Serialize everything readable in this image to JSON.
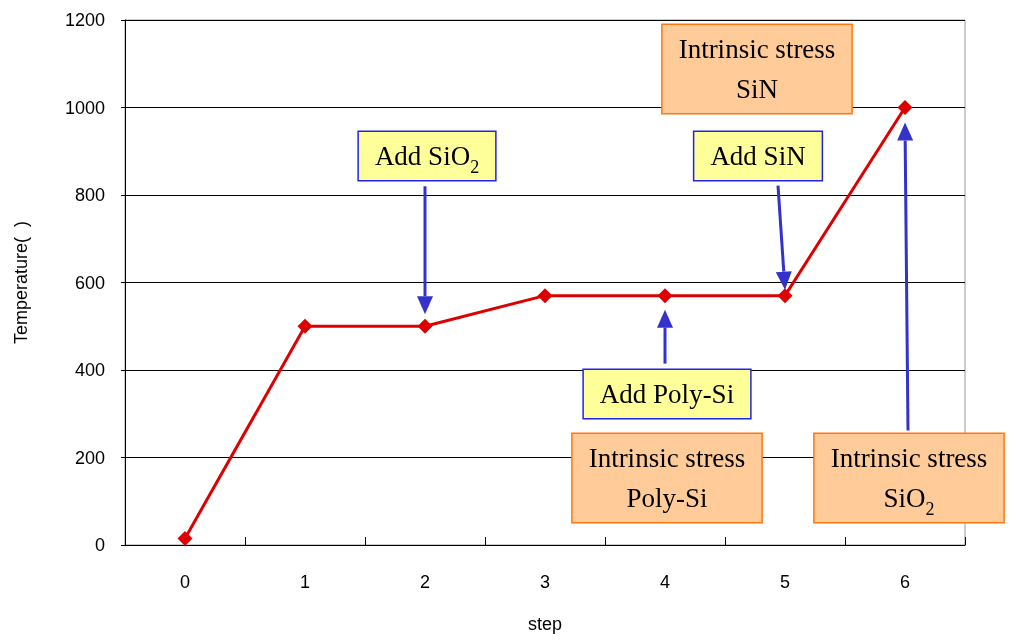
{
  "chart_data": {
    "type": "line",
    "xlabel": "step",
    "ylabel": "Temperature(  )",
    "categories": [
      "0",
      "1",
      "2",
      "3",
      "4",
      "5",
      "6"
    ],
    "series": [
      {
        "color": "#dd0000",
        "values": [
          15,
          500,
          500,
          570,
          570,
          570,
          1000
        ]
      }
    ],
    "ylim": [
      0,
      1200
    ],
    "yticks": [
      0,
      200,
      400,
      600,
      800,
      1000,
      1200
    ],
    "grid": "y",
    "marker": "diamond",
    "line_style": "solid",
    "annotations": [
      "Add SiO$_{2}$",
      "Add Poly-Si",
      "Add SiN",
      "Intrinsic stress\nSiO$_{2}$",
      "Intrinsic stress\nPoly-Si",
      "Intrinsic stress\nSiN"
    ]
  }
}
